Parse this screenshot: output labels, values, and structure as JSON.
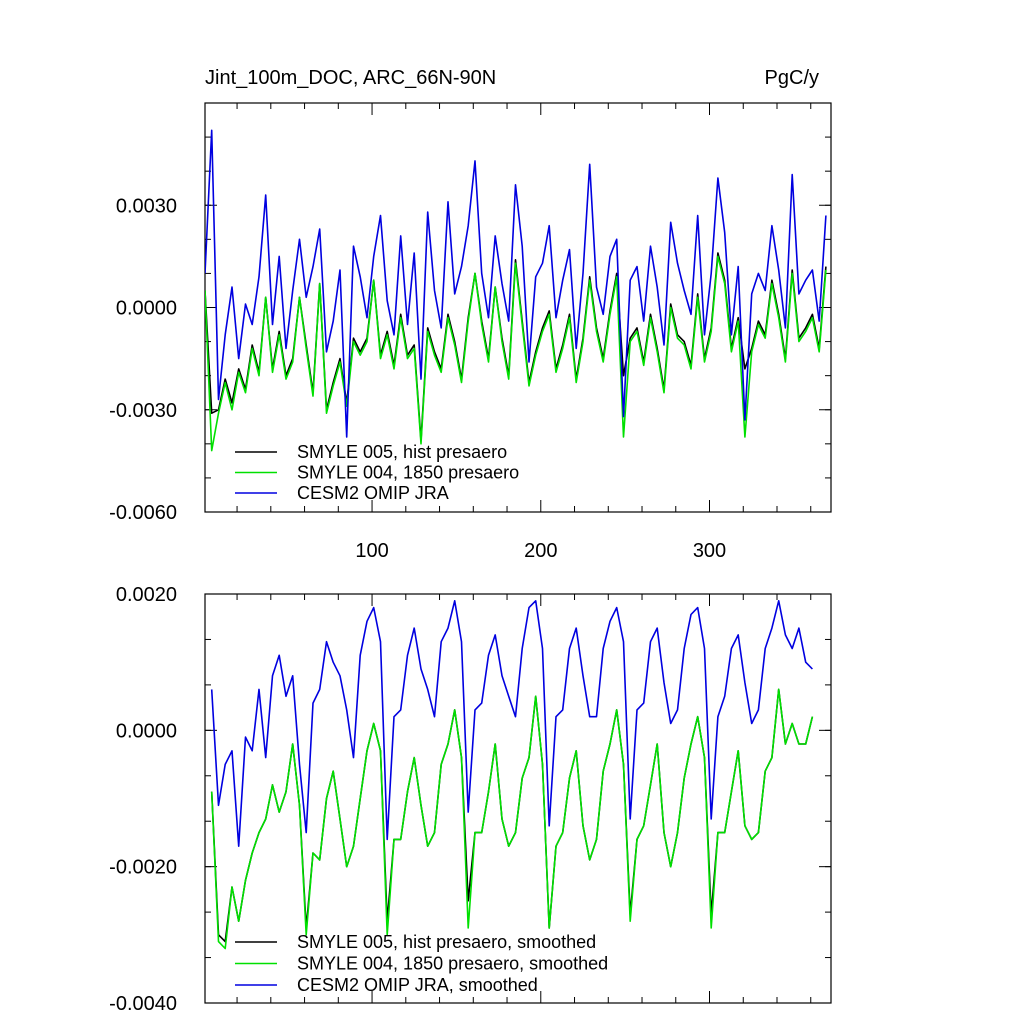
{
  "chart_data": [
    {
      "type": "line",
      "title_left": "Jint_100m_DOC, ARC_66N-90N",
      "title_right": "PgC/y",
      "xlabel": "",
      "ylabel": "",
      "xlim": [
        1,
        372
      ],
      "ylim": [
        -0.006,
        0.006
      ],
      "x_ticks": [
        100,
        200,
        300
      ],
      "x_tick_labels": [
        "100",
        "200",
        "300"
      ],
      "y_ticks": [
        -0.006,
        -0.003,
        0.0,
        0.003
      ],
      "y_tick_labels": [
        "-0.0060",
        "-0.0030",
        "0.0000",
        "0.0030"
      ],
      "legend_position": "bottom-left",
      "series": [
        {
          "name": "SMYLE 005, hist presaero",
          "color": "#000000",
          "x_start": 1,
          "x_step": 4,
          "values": [
            0.0005,
            -0.0031,
            -0.003,
            -0.0021,
            -0.0028,
            -0.0018,
            -0.0024,
            -0.0011,
            -0.0019,
            0.0003,
            -0.0018,
            -0.0007,
            -0.002,
            -0.0015,
            0.0003,
            -0.0011,
            -0.0025,
            0.0007,
            -0.003,
            -0.0022,
            -0.0015,
            -0.0028,
            -0.0009,
            -0.0013,
            -0.0009,
            0.0008,
            -0.0014,
            -0.0007,
            -0.0017,
            -0.0002,
            -0.0014,
            -0.0011,
            -0.0039,
            -0.0006,
            -0.0013,
            -0.0018,
            -0.0002,
            -0.001,
            -0.0021,
            -0.0003,
            0.001,
            -0.0004,
            -0.0015,
            0.0006,
            -0.0009,
            -0.002,
            0.0014,
            -0.0004,
            -0.0022,
            -0.0013,
            -0.0006,
            -0.0001,
            -0.0018,
            -0.0011,
            -0.0002,
            -0.0021,
            -0.0009,
            0.0009,
            -0.0006,
            -0.0015,
            -0.0001,
            0.001,
            -0.002,
            -0.0009,
            -0.0006,
            -0.0016,
            -0.0002,
            -0.0012,
            -0.0024,
            0.0001,
            -0.0008,
            -0.001,
            -0.0017,
            0.0004,
            -0.0015,
            -0.0006,
            0.0016,
            0.0008,
            -0.0012,
            -0.0003,
            -0.0018,
            -0.0012,
            -0.0004,
            -0.0008,
            0.0008,
            -0.0002,
            -0.0015,
            0.0011,
            -0.0009,
            -0.0006,
            -0.0002,
            -0.0012,
            0.0012
          ]
        },
        {
          "name": "SMYLE 004, 1850 presaero",
          "color": "#00e000",
          "x_start": 1,
          "x_step": 4,
          "values": [
            0.0005,
            -0.0042,
            -0.0031,
            -0.0022,
            -0.003,
            -0.0019,
            -0.0025,
            -0.0012,
            -0.002,
            0.0003,
            -0.0019,
            -0.0008,
            -0.0021,
            -0.0016,
            0.0003,
            -0.0012,
            -0.0026,
            0.0007,
            -0.0031,
            -0.0023,
            -0.0016,
            -0.0029,
            -0.001,
            -0.0014,
            -0.001,
            0.0008,
            -0.0015,
            -0.0008,
            -0.0018,
            -0.0003,
            -0.0015,
            -0.0012,
            -0.004,
            -0.0007,
            -0.0014,
            -0.0019,
            -0.0003,
            -0.0011,
            -0.0022,
            -0.0004,
            0.001,
            -0.0005,
            -0.0016,
            0.0006,
            -0.001,
            -0.0021,
            0.0013,
            -0.0005,
            -0.0023,
            -0.0014,
            -0.0007,
            -0.0002,
            -0.0019,
            -0.0012,
            -0.0003,
            -0.0022,
            -0.001,
            0.0008,
            -0.0007,
            -0.0016,
            -0.0002,
            0.0009,
            -0.0038,
            -0.001,
            -0.0007,
            -0.0017,
            -0.0003,
            -0.0013,
            -0.0025,
            0.0,
            -0.0009,
            -0.0011,
            -0.0018,
            0.0003,
            -0.0016,
            -0.0007,
            0.0015,
            0.0007,
            -0.0013,
            -0.0004,
            -0.0038,
            -0.0013,
            -0.0005,
            -0.0009,
            0.0007,
            -0.0003,
            -0.0016,
            0.001,
            -0.001,
            -0.0007,
            -0.0003,
            -0.0013,
            0.0011
          ]
        },
        {
          "name": "CESM2 OMIP JRA",
          "color": "#0000e0",
          "x_start": 1,
          "x_step": 4,
          "values": [
            0.001,
            0.0052,
            -0.0027,
            -0.0008,
            0.0006,
            -0.0015,
            0.0001,
            -0.0005,
            0.0009,
            0.0033,
            -0.0005,
            0.0015,
            -0.0012,
            0.0005,
            0.002,
            0.0003,
            0.0012,
            0.0023,
            -0.0013,
            -0.0004,
            0.0011,
            -0.0038,
            0.0018,
            0.0009,
            -0.0003,
            0.0015,
            0.0027,
            0.0002,
            -0.0008,
            0.0021,
            -0.0005,
            0.0016,
            -0.0021,
            0.0028,
            0.0005,
            -0.0006,
            0.0031,
            0.0004,
            0.0012,
            0.0024,
            0.0043,
            0.001,
            -0.0003,
            0.0021,
            0.0007,
            -0.0004,
            0.0036,
            0.0018,
            -0.0016,
            0.0009,
            0.0013,
            0.0024,
            -0.0003,
            0.0008,
            0.0017,
            -0.0012,
            0.001,
            0.0042,
            0.0006,
            -0.0002,
            0.0015,
            0.002,
            -0.0032,
            0.0008,
            0.0012,
            -0.0004,
            0.0018,
            0.0006,
            -0.0011,
            0.0025,
            0.0013,
            0.0005,
            -0.0002,
            0.0027,
            -0.0008,
            0.001,
            0.0038,
            0.0022,
            -0.0008,
            0.0012,
            -0.0033,
            0.0004,
            0.001,
            0.0005,
            0.0024,
            0.0011,
            -0.0006,
            0.0039,
            0.0004,
            0.0008,
            0.0011,
            -0.0004,
            0.0027
          ]
        }
      ]
    },
    {
      "type": "line",
      "title_left": "",
      "title_right": "",
      "xlabel": "",
      "ylabel": "",
      "xlim": [
        1,
        372
      ],
      "ylim": [
        -0.004,
        0.002
      ],
      "x_ticks": [
        100,
        200,
        300
      ],
      "y_ticks": [
        -0.004,
        -0.002,
        0.0,
        0.002
      ],
      "y_tick_labels": [
        "-0.0040",
        "-0.0020",
        "0.0000",
        "0.0020"
      ],
      "legend_position": "bottom-left",
      "series": [
        {
          "name": "SMYLE 005, hist presaero, smoothed",
          "color": "#000000",
          "x_start": 5,
          "x_step": 4,
          "values": [
            -0.0009,
            -0.003,
            -0.0031,
            -0.0023,
            -0.0028,
            -0.0022,
            -0.0018,
            -0.0015,
            -0.0013,
            -0.0008,
            -0.0012,
            -0.0009,
            -0.0002,
            -0.0011,
            -0.0029,
            -0.0018,
            -0.0019,
            -0.001,
            -0.0006,
            -0.0013,
            -0.002,
            -0.0017,
            -0.001,
            -0.0003,
            0.0001,
            -0.0003,
            -0.0028,
            -0.0016,
            -0.0016,
            -0.0009,
            -0.0004,
            -0.0011,
            -0.0017,
            -0.0015,
            -0.0005,
            -0.0002,
            0.0003,
            -0.0004,
            -0.0025,
            -0.0015,
            -0.0015,
            -0.0009,
            -0.0002,
            -0.0013,
            -0.0017,
            -0.0015,
            -0.0007,
            -0.0004,
            0.0005,
            -0.0005,
            -0.0029,
            -0.0017,
            -0.0015,
            -0.0007,
            -0.0003,
            -0.0014,
            -0.0019,
            -0.0016,
            -0.0006,
            -0.0002,
            0.0003,
            -0.0005,
            -0.0027,
            -0.0016,
            -0.0014,
            -0.0008,
            -0.0002,
            -0.0015,
            -0.002,
            -0.0015,
            -0.0007,
            -0.0002,
            0.0002,
            -0.0004,
            -0.0027,
            -0.0015,
            -0.0015,
            -0.0009,
            -0.0003,
            -0.0014,
            -0.0016,
            -0.0015,
            -0.0006,
            -0.0004,
            0.0006,
            -0.0002,
            0.0001,
            -0.0002,
            -0.0002,
            0.0002
          ]
        },
        {
          "name": "SMYLE 004, 1850 presaero, smoothed",
          "color": "#00e000",
          "x_start": 5,
          "x_step": 4,
          "values": [
            -0.0009,
            -0.0031,
            -0.0032,
            -0.0023,
            -0.0028,
            -0.0022,
            -0.0018,
            -0.0015,
            -0.0013,
            -0.0008,
            -0.0012,
            -0.0009,
            -0.0002,
            -0.0011,
            -0.003,
            -0.0018,
            -0.0019,
            -0.001,
            -0.0006,
            -0.0013,
            -0.002,
            -0.0017,
            -0.001,
            -0.0003,
            0.0001,
            -0.0003,
            -0.003,
            -0.0016,
            -0.0016,
            -0.0009,
            -0.0004,
            -0.0011,
            -0.0017,
            -0.0015,
            -0.0005,
            -0.0002,
            0.0003,
            -0.0004,
            -0.0029,
            -0.0015,
            -0.0015,
            -0.0009,
            -0.0002,
            -0.0013,
            -0.0017,
            -0.0015,
            -0.0007,
            -0.0004,
            0.0005,
            -0.0005,
            -0.0029,
            -0.0017,
            -0.0015,
            -0.0007,
            -0.0003,
            -0.0014,
            -0.0019,
            -0.0016,
            -0.0006,
            -0.0002,
            0.0003,
            -0.0005,
            -0.0028,
            -0.0016,
            -0.0014,
            -0.0008,
            -0.0002,
            -0.0015,
            -0.002,
            -0.0015,
            -0.0007,
            -0.0002,
            0.0002,
            -0.0004,
            -0.0029,
            -0.0015,
            -0.0015,
            -0.0009,
            -0.0003,
            -0.0014,
            -0.0016,
            -0.0015,
            -0.0006,
            -0.0004,
            0.0006,
            -0.0002,
            0.0001,
            -0.0002,
            -0.0002,
            0.0002
          ]
        },
        {
          "name": "CESM2 OMIP JRA, smoothed",
          "color": "#0000e0",
          "x_start": 5,
          "x_step": 4,
          "values": [
            0.0006,
            -0.0011,
            -0.0005,
            -0.0003,
            -0.0017,
            -0.0001,
            -0.0003,
            0.0006,
            -0.0004,
            0.0008,
            0.0011,
            0.0005,
            0.0008,
            -0.0005,
            -0.0015,
            0.0004,
            0.0006,
            0.0013,
            0.001,
            0.0008,
            0.0003,
            -0.0004,
            0.0011,
            0.0016,
            0.0018,
            0.0013,
            -0.0016,
            0.0002,
            0.0003,
            0.0011,
            0.0015,
            0.0009,
            0.0006,
            0.0002,
            0.0013,
            0.0015,
            0.0019,
            0.0013,
            -0.0012,
            0.0003,
            0.0004,
            0.0011,
            0.0014,
            0.0008,
            0.0005,
            0.0002,
            0.0012,
            0.0018,
            0.0019,
            0.0012,
            -0.0014,
            0.0002,
            0.0003,
            0.0012,
            0.0015,
            0.0008,
            0.0002,
            0.0002,
            0.0012,
            0.0016,
            0.0018,
            0.0013,
            -0.0013,
            0.0003,
            0.0004,
            0.0013,
            0.0015,
            0.0007,
            0.0001,
            0.0003,
            0.0012,
            0.0017,
            0.0018,
            0.0012,
            -0.0013,
            0.0002,
            0.0005,
            0.0012,
            0.0014,
            0.0007,
            0.0001,
            0.0003,
            0.0012,
            0.0015,
            0.0019,
            0.0014,
            0.0012,
            0.0015,
            0.001,
            0.0009
          ]
        }
      ]
    }
  ]
}
